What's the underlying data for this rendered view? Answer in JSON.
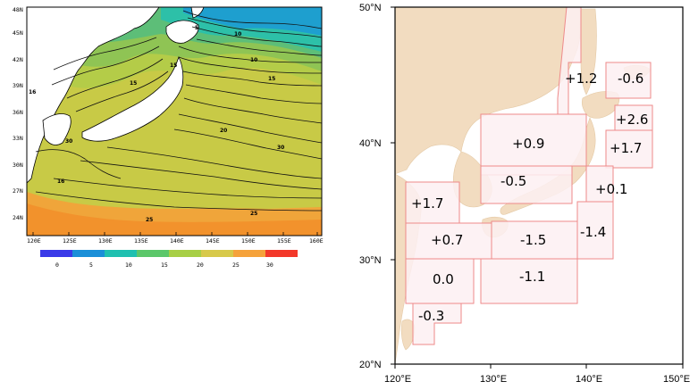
{
  "sst_map": {
    "lon_ticks": [
      "120E",
      "125E",
      "130E",
      "135E",
      "140E",
      "145E",
      "150E",
      "155E",
      "160E"
    ],
    "lat_ticks": [
      "24N",
      "27N",
      "30N",
      "33N",
      "36N",
      "39N",
      "42N",
      "45N",
      "48N"
    ],
    "contour_labels": [
      "5",
      "10",
      "15",
      "16",
      "15",
      "20",
      "30",
      "25",
      "25",
      "30",
      "10",
      "16",
      "15"
    ],
    "colorbar": {
      "ticks": [
        "0",
        "5",
        "10",
        "15",
        "20",
        "25",
        "30"
      ],
      "colors": [
        "#3a3ae8",
        "#1a8fd8",
        "#1fc0b0",
        "#5cc76a",
        "#a7cf46",
        "#d7c94a",
        "#f5a23b",
        "#f3382a"
      ]
    }
  },
  "anomaly_map": {
    "lon_labels": [
      "120°E",
      "130°E",
      "140°E",
      "150°E"
    ],
    "lat_labels": [
      "50°N",
      "40°N",
      "30°N",
      "20°N"
    ],
    "regions": [
      {
        "value": "+1.2"
      },
      {
        "value": "-0.6"
      },
      {
        "value": "+2.6"
      },
      {
        "value": "+0.9"
      },
      {
        "value": "+1.7"
      },
      {
        "value": "-0.5"
      },
      {
        "value": "+0.1"
      },
      {
        "value": "+1.7"
      },
      {
        "value": "-1.4"
      },
      {
        "value": "+0.7"
      },
      {
        "value": "-1.5"
      },
      {
        "value": "0.0"
      },
      {
        "value": "-1.1"
      },
      {
        "value": "-0.3"
      }
    ],
    "colors": {
      "land": "#f2dcc0",
      "sea": "#ffffff",
      "box_fill": "#fdf0f2",
      "box_stroke": "#ee8a8a"
    }
  }
}
